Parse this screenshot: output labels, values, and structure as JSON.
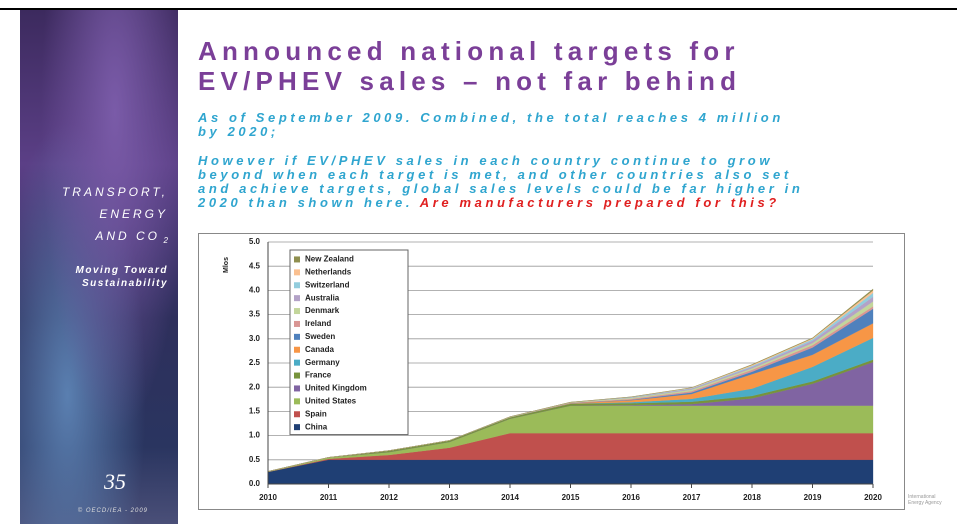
{
  "slide": {
    "side_title": [
      "TRANSPORT,",
      "ENERGY",
      "AND CO"
    ],
    "side_sub": "2",
    "side_tagline": [
      "Moving Toward",
      "Sustainability"
    ],
    "copyright": "© OECD/IEA - 2009",
    "subtitle": [
      "As of September 2009. Combined, the total reaches 4 million",
      "by 2020;"
    ],
    "note": [
      "However if EV/PHEV sales in each country continue to grow",
      "beyond when each target is met, and other countries also set",
      "and achieve targets, global sales levels could be far higher in",
      "2020 than shown here."
    ],
    "note_highlight": "Are manufacturers prepared for this?",
    "agency": [
      "International",
      "Energy Agency"
    ]
  },
  "chart_data": {
    "type": "stacked_area",
    "title": [
      "Announced national targets for",
      "EV/PHEV sales – not far behind"
    ],
    "y_label": "Mlos",
    "x": [
      2010,
      2011,
      2012,
      2013,
      2014,
      2015,
      2016,
      2017,
      2018,
      2019,
      2020
    ],
    "xlim": [
      2010,
      2020
    ],
    "xticks": [
      2010,
      2011,
      2012,
      2013,
      2014,
      2015,
      2016,
      2017,
      2018,
      2019,
      2020
    ],
    "ylim": [
      0,
      5
    ],
    "yticks": [
      {
        "value": 0,
        "label": "0.0"
      },
      {
        "value": 0.5,
        "label": "0.5"
      },
      {
        "value": 1,
        "label": "1.0"
      },
      {
        "value": 1.5,
        "label": "1.5"
      },
      {
        "value": 2,
        "label": "2.0"
      },
      {
        "value": 2.5,
        "label": "2.5"
      },
      {
        "value": 3,
        "label": "3.0"
      },
      {
        "value": 3.5,
        "label": "3.5"
      },
      {
        "value": 4,
        "label": "4.0"
      },
      {
        "value": 4.5,
        "label": "4.5"
      },
      {
        "value": 5,
        "label": "5.0"
      }
    ],
    "grid": true,
    "legend": "upper left",
    "series": [
      {
        "name": "China",
        "color": "#1f3f74",
        "values": [
          0.25,
          0.5,
          0.5,
          0.5,
          0.5,
          0.5,
          0.5,
          0.5,
          0.5,
          0.5,
          0.5
        ]
      },
      {
        "name": "Spain",
        "color": "#c0504d",
        "values": [
          0,
          0.02,
          0.1,
          0.25,
          0.55,
          0.55,
          0.55,
          0.55,
          0.55,
          0.55,
          0.55
        ]
      },
      {
        "name": "United States",
        "color": "#9bbb59",
        "values": [
          0.01,
          0.03,
          0.06,
          0.12,
          0.3,
          0.57,
          0.57,
          0.57,
          0.57,
          0.57,
          0.57
        ]
      },
      {
        "name": "United Kingdom",
        "color": "#8064a2",
        "values": [
          0,
          0,
          0,
          0,
          0,
          0,
          0.01,
          0.03,
          0.15,
          0.45,
          0.9
        ]
      },
      {
        "name": "France",
        "color": "#77933c",
        "values": [
          0,
          0,
          0.03,
          0.03,
          0.03,
          0.04,
          0.04,
          0.05,
          0.05,
          0.05,
          0.05
        ]
      },
      {
        "name": "Germany",
        "color": "#4bacc6",
        "values": [
          0,
          0,
          0,
          0,
          0,
          0,
          0.02,
          0.06,
          0.15,
          0.3,
          0.45
        ]
      },
      {
        "name": "Canada",
        "color": "#f79646",
        "values": [
          0,
          0,
          0,
          0,
          0,
          0.01,
          0.04,
          0.1,
          0.3,
          0.25,
          0.3
        ]
      },
      {
        "name": "Sweden",
        "color": "#4f81bd",
        "values": [
          0,
          0,
          0,
          0,
          0,
          0,
          0.01,
          0.03,
          0.05,
          0.15,
          0.3
        ]
      },
      {
        "name": "Ireland",
        "color": "#d99694",
        "values": [
          0,
          0,
          0,
          0,
          0,
          0.01,
          0.02,
          0.03,
          0.04,
          0.05,
          0.05
        ]
      },
      {
        "name": "Denmark",
        "color": "#c3d69b",
        "values": [
          0,
          0,
          0,
          0,
          0.01,
          0.01,
          0.02,
          0.03,
          0.03,
          0.04,
          0.1
        ]
      },
      {
        "name": "Australia",
        "color": "#b3a2c7",
        "values": [
          0,
          0,
          0,
          0,
          0,
          0,
          0.01,
          0.02,
          0.03,
          0.05,
          0.1
        ]
      },
      {
        "name": "Switzerland",
        "color": "#93cddd",
        "values": [
          0,
          0,
          0,
          0,
          0,
          0,
          0.01,
          0.01,
          0.02,
          0.03,
          0.08
        ]
      },
      {
        "name": "Netherlands",
        "color": "#fac090",
        "values": [
          0,
          0,
          0,
          0,
          0,
          0,
          0,
          0.01,
          0.02,
          0.02,
          0.05
        ]
      },
      {
        "name": "New Zealand",
        "color": "#8f8f4f",
        "values": [
          0,
          0,
          0,
          0,
          0,
          0,
          0,
          0,
          0.01,
          0.01,
          0.03
        ]
      }
    ]
  }
}
